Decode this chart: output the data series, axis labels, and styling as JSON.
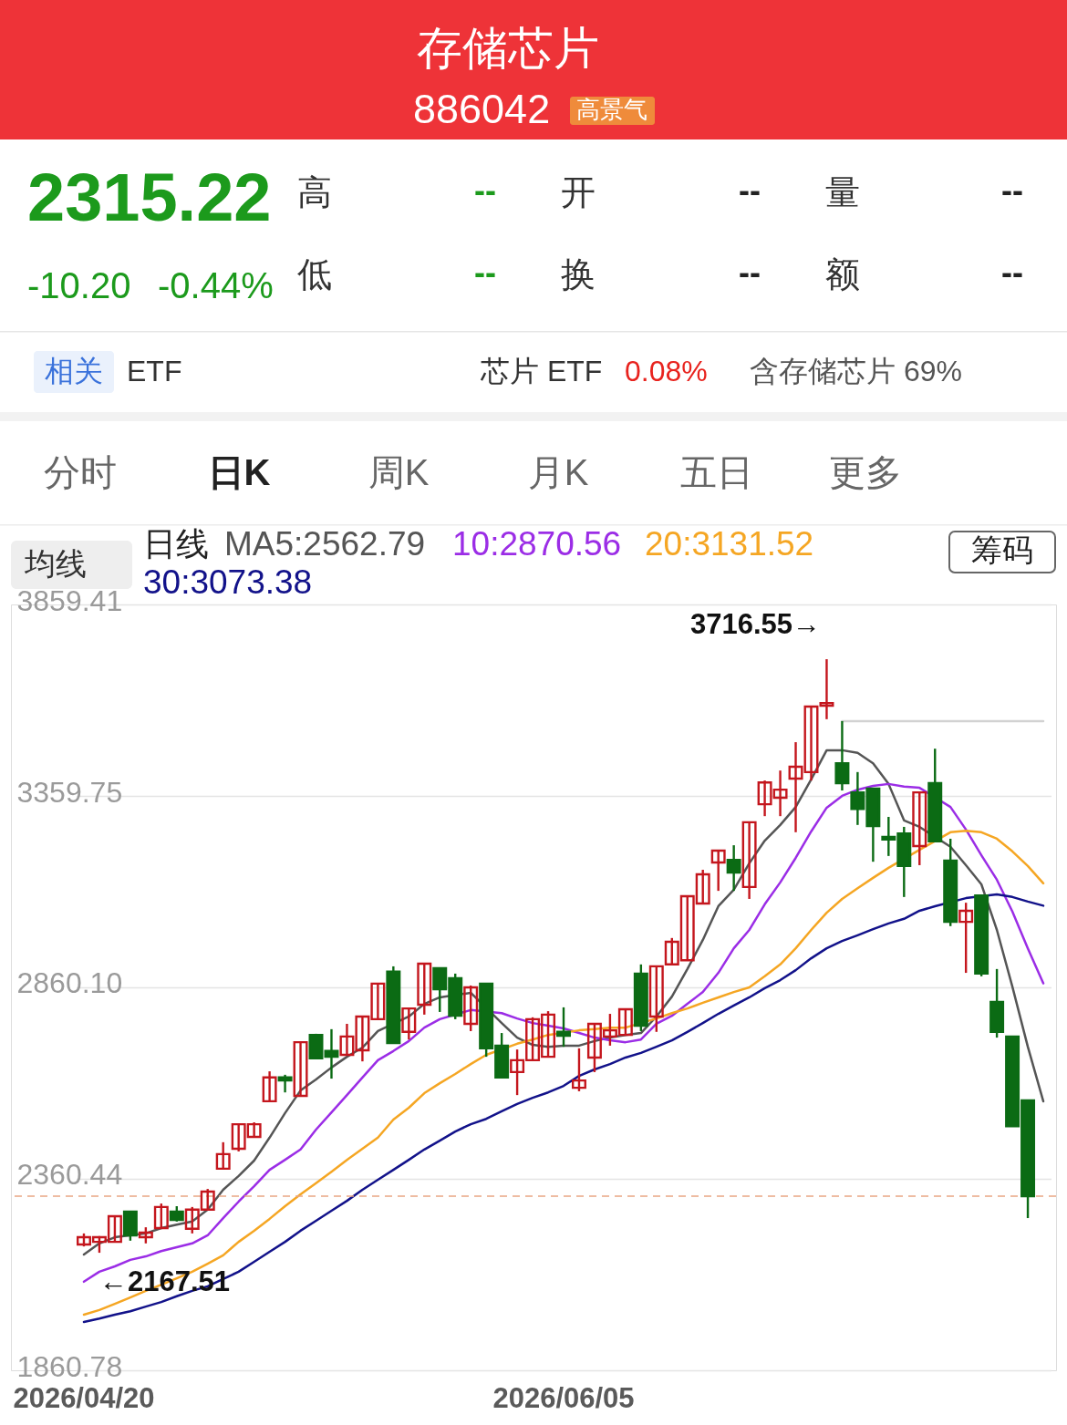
{
  "chart_data": {
    "type": "candlestick",
    "title": "存储芯片",
    "subtitle": "886042",
    "categories": [
      "2026/04/20",
      null,
      null,
      null,
      null,
      null,
      null,
      null,
      null,
      null,
      null,
      null,
      null,
      null,
      null,
      null,
      null,
      null,
      null,
      null,
      null,
      null,
      null,
      null,
      null,
      null,
      null,
      null,
      null,
      null,
      null,
      "2026/06/05",
      null,
      null,
      null,
      null,
      null,
      null,
      null,
      null,
      null,
      null,
      null,
      null,
      null,
      null,
      null,
      null,
      null,
      null,
      null,
      null,
      null,
      null,
      null,
      null,
      null,
      null,
      null,
      null,
      null,
      null,
      null
    ],
    "ohlc": [
      [
        2189,
        2218,
        2184,
        2208
      ],
      [
        2196,
        2211,
        2167.51,
        2208
      ],
      [
        2196,
        2263,
        2196,
        2263
      ],
      [
        2275,
        2275,
        2199,
        2213
      ],
      [
        2208,
        2234,
        2192,
        2220
      ],
      [
        2232,
        2296,
        2232,
        2287
      ],
      [
        2275,
        2289,
        2249,
        2253
      ],
      [
        2230,
        2287,
        2218,
        2280
      ],
      [
        2280,
        2334,
        2280,
        2327
      ],
      [
        2387,
        2456,
        2387,
        2425
      ],
      [
        2439,
        2503,
        2432,
        2503
      ],
      [
        2470,
        2508,
        2470,
        2503
      ],
      [
        2563,
        2641,
        2563,
        2625
      ],
      [
        2625,
        2632,
        2586,
        2617
      ],
      [
        2577,
        2717,
        2577,
        2717
      ],
      [
        2736,
        2739,
        2675,
        2675
      ],
      [
        2694,
        2751,
        2622,
        2679
      ],
      [
        2684,
        2765,
        2684,
        2732
      ],
      [
        2696,
        2784,
        2667,
        2784
      ],
      [
        2777,
        2870,
        2777,
        2870
      ],
      [
        2901,
        2915,
        2715,
        2715
      ],
      [
        2744,
        2805,
        2724,
        2805
      ],
      [
        2815,
        2924,
        2789,
        2922
      ],
      [
        2910,
        2910,
        2796,
        2855
      ],
      [
        2884,
        2896,
        2777,
        2786
      ],
      [
        2765,
        2865,
        2746,
        2860
      ],
      [
        2870,
        2870,
        2679,
        2701
      ],
      [
        2708,
        2741,
        2625,
        2625
      ],
      [
        2639,
        2698,
        2579,
        2670
      ],
      [
        2670,
        2782,
        2670,
        2777
      ],
      [
        2679,
        2798,
        2679,
        2789
      ],
      [
        2744,
        2808,
        2705,
        2734
      ],
      [
        2598,
        2701,
        2589,
        2617
      ],
      [
        2677,
        2765,
        2639,
        2765
      ],
      [
        2732,
        2791,
        2708,
        2748
      ],
      [
        2736,
        2803,
        2736,
        2803
      ],
      [
        2896,
        2920,
        2746,
        2760
      ],
      [
        2784,
        2915,
        2744,
        2915
      ],
      [
        2920,
        2989,
        2920,
        2979
      ],
      [
        2931,
        3098,
        2931,
        3098
      ],
      [
        3079,
        3167,
        3079,
        3155
      ],
      [
        3186,
        3217,
        3112,
        3217
      ],
      [
        3193,
        3231,
        3112,
        3160
      ],
      [
        3122,
        3291,
        3091,
        3291
      ],
      [
        3338,
        3400,
        3307,
        3395
      ],
      [
        3355,
        3426,
        3307,
        3376
      ],
      [
        3405,
        3500,
        3265,
        3436
      ],
      [
        3422,
        3593,
        3400,
        3593
      ],
      [
        3595,
        3716.55,
        3560,
        3602
      ],
      [
        3445,
        3555,
        3374,
        3393
      ],
      [
        3369,
        3422,
        3284,
        3326
      ],
      [
        3379,
        3379,
        3188,
        3281
      ],
      [
        3253,
        3305,
        3203,
        3246
      ],
      [
        3262,
        3279,
        3096,
        3177
      ],
      [
        3229,
        3369,
        3179,
        3369
      ],
      [
        3393,
        3483,
        3241,
        3241
      ],
      [
        3191,
        3248,
        3020,
        3031
      ],
      [
        3031,
        3081,
        2898,
        3060
      ],
      [
        3100,
        3100,
        2889,
        2896
      ],
      [
        2822,
        2908,
        2729,
        2744
      ],
      [
        2732,
        2732,
        2498,
        2498
      ],
      [
        2565,
        2567,
        2258,
        2315.22
      ],
      null
    ],
    "colors": [
      "#c4161d",
      "#c4161d",
      "#c4161d",
      "#0b6b14",
      "#c4161d",
      "#c4161d",
      "#0b6b14",
      "#c4161d",
      "#c4161d",
      "#c4161d",
      "#c4161d",
      "#c4161d",
      "#c4161d",
      "#0b6b14",
      "#c4161d",
      "#0b6b14",
      "#0b6b14",
      "#c4161d",
      "#c4161d",
      "#c4161d",
      "#0b6b14",
      "#c4161d",
      "#c4161d",
      "#0b6b14",
      "#0b6b14",
      "#c4161d",
      "#0b6b14",
      "#0b6b14",
      "#c4161d",
      "#c4161d",
      "#c4161d",
      "#0b6b14",
      "#c4161d",
      "#c4161d",
      "#c4161d",
      "#c4161d",
      "#0b6b14",
      "#c4161d",
      "#c4161d",
      "#c4161d",
      "#c4161d",
      "#c4161d",
      "#0b6b14",
      "#c4161d",
      "#c4161d",
      "#c4161d",
      "#c4161d",
      "#c4161d",
      "#c4161d",
      "#0b6b14",
      "#0b6b14",
      "#0b6b14",
      "#0b6b14",
      "#0b6b14",
      "#c4161d",
      "#0b6b14",
      "#0b6b14",
      "#c4161d",
      "#0b6b14",
      "#0b6b14",
      "#0b6b14",
      "#0b6b14",
      null
    ],
    "series": [
      {
        "name": "MA5:2562.79",
        "type": "line",
        "color": "#555555",
        "values": [
          2163,
          2192,
          2208,
          null,
          2218,
          2232,
          2241,
          2249,
          2280,
          2332,
          2368,
          2408,
          2468,
          2532,
          2591,
          2620,
          2651,
          2679,
          2703,
          2746,
          null,
          2784,
          2817,
          2834,
          null,
          2846,
          null,
          2767,
          2729,
          2710,
          2705,
          2708,
          2708,
          2720,
          2729,
          2736,
          2741,
          2784,
          2836,
          2908,
          2984,
          3072,
          3115,
          3184,
          3243,
          3284,
          3331,
          3403,
          3479,
          3479,
          3472,
          3445,
          3391,
          3296,
          3279,
          null,
          3227,
          3179,
          3129,
          3010,
          2862,
          2705,
          2562.79
        ]
      },
      {
        "name": "10:2870.56",
        "type": "line",
        "color": "#9b2de6",
        "values": [
          2092,
          2118,
          2132,
          2149,
          2158,
          2172,
          2182,
          2192,
          2213,
          2258,
          2301,
          2341,
          2384,
          2410,
          2437,
          2489,
          2534,
          2579,
          2625,
          2670,
          2694,
          2720,
          2755,
          2777,
          null,
          2801,
          null,
          2793,
          2779,
          2767,
          2760,
          2753,
          2741,
          2729,
          2722,
          2717,
          2724,
          2765,
          2786,
          2817,
          2848,
          2898,
          2962,
          3010,
          3077,
          3134,
          3198,
          3267,
          3329,
          3360,
          3376,
          3386,
          3391,
          3384,
          3381,
          null,
          3331,
          3272,
          3205,
          3141,
          3058,
          2962,
          2870.56
        ]
      },
      {
        "name": "20:3131.52",
        "type": "line",
        "color": "#f5a623",
        "values": [
          2006,
          2018,
          2034,
          2051,
          2068,
          2084,
          2101,
          2118,
          2139,
          2161,
          2196,
          2225,
          2256,
          2289,
          2320,
          2349,
          2379,
          2410,
          2439,
          2468,
          2515,
          2546,
          2584,
          2610,
          2634,
          2660,
          2684,
          null,
          2713,
          2724,
          2736,
          null,
          2748,
          2751,
          2755,
          2755,
          null,
          2779,
          2793,
          2805,
          2820,
          2834,
          2848,
          2860,
          2889,
          2920,
          2962,
          3010,
          3055,
          3091,
          3119,
          3146,
          3172,
          null,
          3219,
          null,
          3265,
          3269,
          3265,
          3248,
          3215,
          3177,
          3131.52
        ]
      },
      {
        "name": "30:3073.38",
        "type": "line",
        "color": "#12128a",
        "values": [
          1987,
          1996,
          2006,
          2015,
          2027,
          2039,
          2054,
          2068,
          2080,
          2099,
          2118,
          2144,
          2170,
          2196,
          2225,
          2251,
          2277,
          2303,
          2332,
          2358,
          2384,
          2410,
          2437,
          2460,
          2484,
          2503,
          2517,
          2537,
          2556,
          2572,
          2586,
          2603,
          2629,
          2646,
          2660,
          2677,
          2689,
          2705,
          2722,
          2744,
          2767,
          2791,
          2813,
          2834,
          2858,
          2879,
          2905,
          2936,
          2962,
          2981,
          2996,
          3012,
          3027,
          3039,
          3060,
          3072,
          null,
          3093,
          null,
          3103,
          3096,
          3084,
          3073.38
        ]
      },
      {
        "type": "line",
        "color": "#d2d2d2",
        "values": [
          null,
          null,
          null,
          null,
          null,
          null,
          null,
          null,
          null,
          null,
          null,
          null,
          null,
          null,
          null,
          null,
          null,
          null,
          null,
          null,
          null,
          null,
          null,
          null,
          null,
          null,
          null,
          null,
          null,
          null,
          null,
          null,
          null,
          null,
          null,
          null,
          null,
          null,
          null,
          null,
          null,
          null,
          null,
          null,
          null,
          null,
          null,
          null,
          null,
          3555,
          3555,
          3555,
          3555,
          3555,
          3555,
          3555,
          3555,
          3555,
          3555,
          3555,
          3555,
          3555,
          3555
        ]
      }
    ],
    "legend_title": "日线",
    "legend": "top",
    "ylim": [
      1860.78,
      3859.41
    ],
    "yticks": [
      1860.78,
      2360.44,
      {
        "value": 2860.1,
        "label": "2860.10"
      },
      3359.75,
      3859.41
    ],
    "grid": "y",
    "ref_lines": [
      {
        "axis": "y",
        "value": 2315.22,
        "color": "#e9a784",
        "line_style": "dashed"
      }
    ],
    "annotations": [
      "高景气",
      "2315.22",
      "-10.20",
      "-0.44%",
      "高",
      "--",
      "开",
      "--",
      "量",
      "--",
      "低",
      "--",
      "换",
      "--",
      "额",
      "--",
      "相关",
      "ETF",
      "芯片 ETF",
      "0.08%",
      "含存储芯片 69%",
      "分时",
      "日K",
      "周K",
      "月K",
      "五日",
      "更多",
      "均线",
      "筹码",
      "3716.55→",
      {
        "text": "←2167.51",
        "y": 2167.51
      }
    ]
  }
}
